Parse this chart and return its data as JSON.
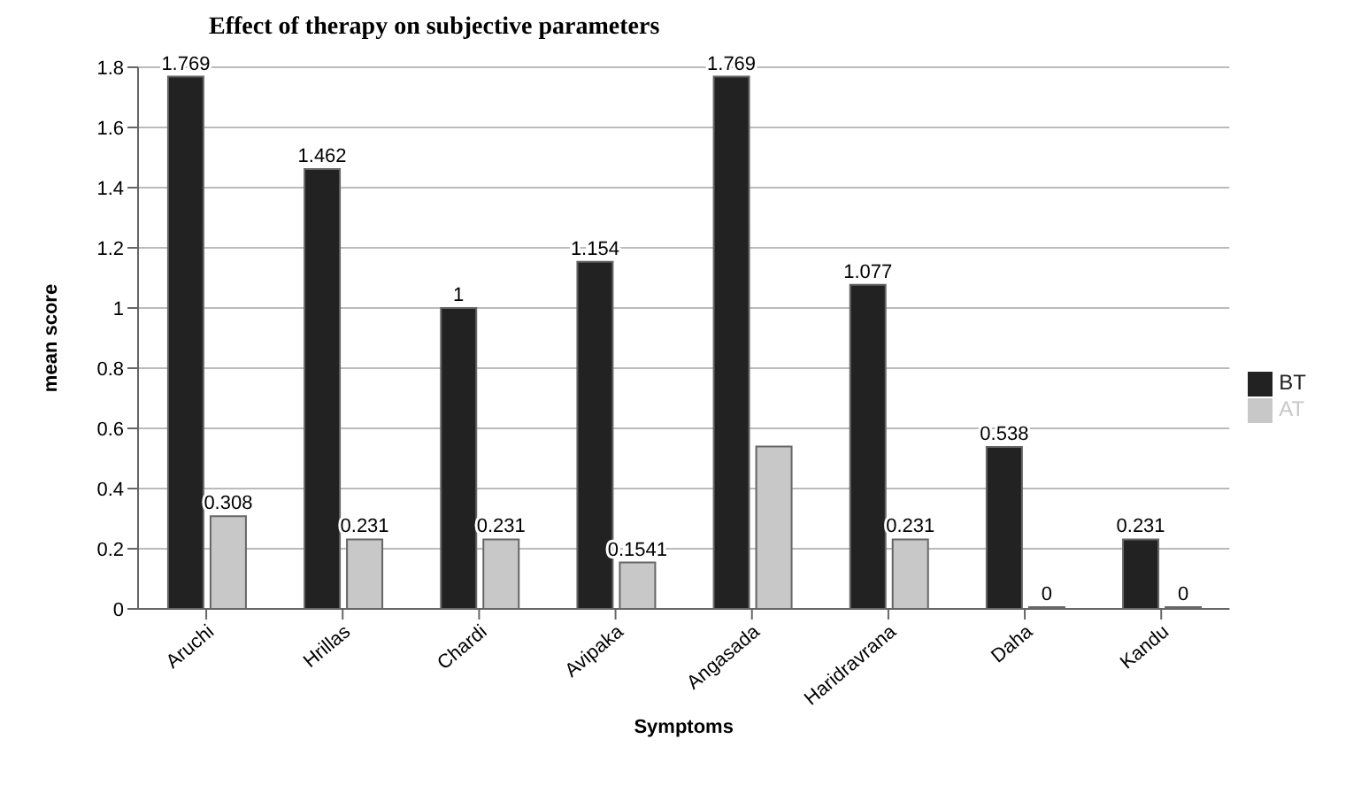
{
  "chart_data": {
    "type": "bar",
    "title": "Effect of therapy on subjective parameters",
    "xlabel": "Symptoms",
    "ylabel": "mean score",
    "categories": [
      "Aruchi",
      "Hrillas",
      "Chardi",
      "Avipaka",
      "Angasada",
      "Haridravrana",
      "Daha",
      "Kandu"
    ],
    "series": [
      {
        "name": "BT",
        "color": "#222222",
        "values": [
          1.769,
          1.462,
          1,
          1.154,
          1.769,
          1.077,
          0.538,
          0.231
        ],
        "value_labels": [
          "1.769",
          "1.462",
          "1",
          "1.154",
          "1.769",
          "1.077",
          "0.538",
          "0.231"
        ]
      },
      {
        "name": "AT",
        "color": "#c8c8c8",
        "values": [
          0.308,
          0.231,
          0.231,
          0.1541,
          0.54,
          0.231,
          0,
          0
        ],
        "value_labels": [
          "0.308",
          "0.231",
          "0.231",
          "0.1541",
          null,
          "0.231",
          "0",
          "0"
        ]
      }
    ],
    "ylim": [
      0,
      1.8
    ],
    "yticks": [
      0,
      0.2,
      0.4,
      0.6,
      0.8,
      1,
      1.2,
      1.4,
      1.6,
      1.8
    ],
    "grid": "y",
    "legend": "right"
  }
}
